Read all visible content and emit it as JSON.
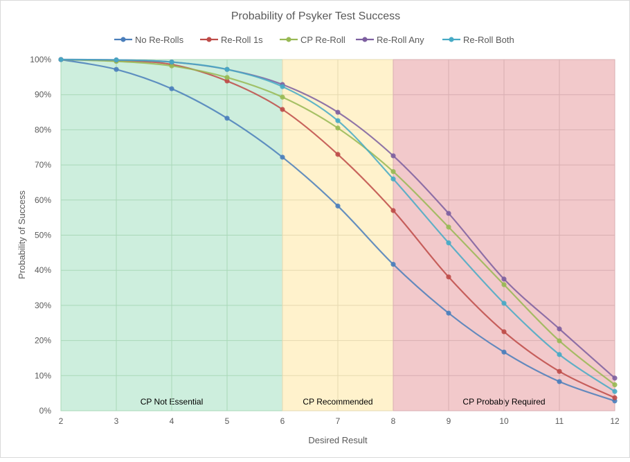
{
  "chart_data": {
    "type": "line",
    "title": "Probability of Psyker Test Success",
    "xlabel": "Desired Result",
    "ylabel": "Probability of Success",
    "x": [
      2,
      3,
      4,
      5,
      6,
      7,
      8,
      9,
      10,
      11,
      12
    ],
    "xlim": [
      2,
      12
    ],
    "ylim": [
      0,
      100
    ],
    "yticks": [
      0,
      10,
      20,
      30,
      40,
      50,
      60,
      70,
      80,
      90,
      100
    ],
    "ytick_labels": [
      "0%",
      "10%",
      "20%",
      "30%",
      "40%",
      "50%",
      "60%",
      "70%",
      "80%",
      "90%",
      "100%"
    ],
    "xtick_labels": [
      "2",
      "3",
      "4",
      "5",
      "6",
      "7",
      "8",
      "9",
      "10",
      "11",
      "12"
    ],
    "grid": true,
    "legend_position": "top",
    "series": [
      {
        "name": "No Re-Rolls",
        "color": "#4a7ebb",
        "values": [
          100,
          97.2,
          91.7,
          83.3,
          72.2,
          58.3,
          41.7,
          27.8,
          16.7,
          8.3,
          2.8
        ]
      },
      {
        "name": "Re-Roll 1s",
        "color": "#be4b48",
        "values": [
          100,
          99.7,
          98.6,
          93.9,
          85.8,
          73.0,
          57.0,
          38.1,
          22.5,
          11.2,
          3.7
        ]
      },
      {
        "name": "CP Re-Roll",
        "color": "#98b954",
        "values": [
          100,
          99.5,
          98.2,
          94.9,
          89.3,
          80.5,
          68.1,
          52.3,
          35.9,
          19.9,
          7.4
        ]
      },
      {
        "name": "Re-Roll Any",
        "color": "#7d5fa0",
        "values": [
          100,
          99.9,
          99.3,
          97.2,
          92.9,
          85.0,
          72.6,
          56.2,
          37.5,
          23.3,
          9.3
        ]
      },
      {
        "name": "Re-Roll Both",
        "color": "#46aac5",
        "values": [
          100,
          99.9,
          99.3,
          97.2,
          92.3,
          82.6,
          66.0,
          47.8,
          30.6,
          16.0,
          5.5
        ]
      }
    ],
    "regions": [
      {
        "label": "CP Not Essential",
        "from": 2,
        "to": 6,
        "color": "#cdeedd",
        "border": "#a9d8b8"
      },
      {
        "label": "CP Recommended",
        "from": 6,
        "to": 8,
        "color": "#fff2cc",
        "border": "#e6d9b0"
      },
      {
        "label": "CP Probably Required",
        "from": 8,
        "to": 12,
        "color": "#f2c9cb",
        "border": "#d8aeb1"
      }
    ]
  }
}
